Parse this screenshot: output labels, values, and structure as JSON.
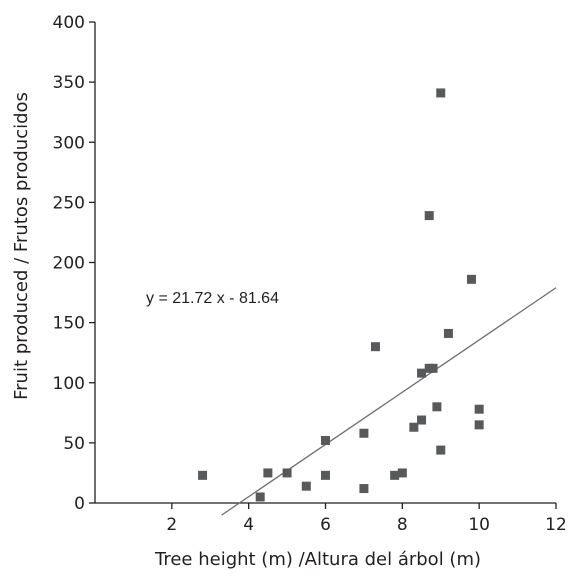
{
  "chart_data": {
    "type": "scatter",
    "xlabel": "Tree height (m) /Altura del árbol (m)",
    "ylabel": "Fruit produced / Frutos producidos",
    "xlim": [
      0,
      12
    ],
    "ylim": [
      0,
      400
    ],
    "xticks": [
      2,
      4,
      6,
      8,
      10,
      12
    ],
    "yticks": [
      0,
      50,
      100,
      150,
      200,
      250,
      300,
      350,
      400
    ],
    "grid": false,
    "marker_color": "#58595b",
    "line_color": "#6d6e71",
    "points": [
      {
        "x": 2.8,
        "y": 23
      },
      {
        "x": 4.3,
        "y": 5
      },
      {
        "x": 4.5,
        "y": 25
      },
      {
        "x": 5.0,
        "y": 25
      },
      {
        "x": 5.5,
        "y": 14
      },
      {
        "x": 6.0,
        "y": 23
      },
      {
        "x": 6.0,
        "y": 52
      },
      {
        "x": 7.0,
        "y": 12
      },
      {
        "x": 7.0,
        "y": 58
      },
      {
        "x": 7.3,
        "y": 130
      },
      {
        "x": 7.8,
        "y": 23
      },
      {
        "x": 8.0,
        "y": 25
      },
      {
        "x": 8.3,
        "y": 63
      },
      {
        "x": 8.5,
        "y": 69
      },
      {
        "x": 8.5,
        "y": 108
      },
      {
        "x": 8.7,
        "y": 112
      },
      {
        "x": 8.7,
        "y": 239
      },
      {
        "x": 8.8,
        "y": 112
      },
      {
        "x": 8.9,
        "y": 80
      },
      {
        "x": 9.0,
        "y": 44
      },
      {
        "x": 9.0,
        "y": 341
      },
      {
        "x": 9.2,
        "y": 141
      },
      {
        "x": 9.8,
        "y": 186
      },
      {
        "x": 10.0,
        "y": 65
      },
      {
        "x": 10.0,
        "y": 78
      }
    ],
    "trendline": {
      "label": "y = 21.72 x - 81.64",
      "slope": 21.72,
      "intercept": -81.64,
      "x_range": [
        3.3,
        12
      ]
    }
  }
}
